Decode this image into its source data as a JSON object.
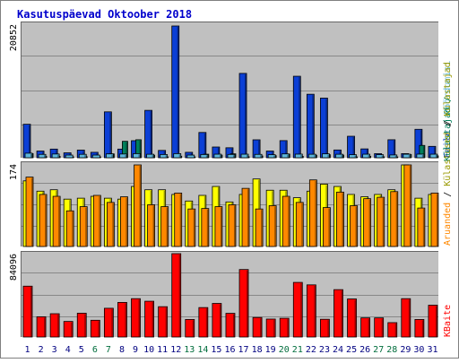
{
  "chart_data": [
    {
      "type": "bar",
      "title": "Kasutuspäevad Oktoober 2018",
      "panel": "top",
      "ylabel_parts": [
        "Külastajad",
        "Faile",
        "Pöördumisi"
      ],
      "max_label": "20852",
      "ylim": [
        0,
        20852
      ],
      "series": [
        {
          "name": "Külastajad",
          "color": "#00805c",
          "values": [
            650,
            195,
            215,
            125,
            165,
            125,
            610,
            2600,
            2850,
            410,
            135,
            250,
            120,
            560,
            410,
            620,
            160,
            280,
            325,
            580,
            220,
            395,
            480,
            420,
            115,
            240,
            155,
            125,
            520,
            1950,
            300
          ]
        },
        {
          "name": "Faile",
          "color": "#0b3fd6",
          "values": [
            5300,
            1060,
            1370,
            780,
            1210,
            860,
            7260,
            1370,
            2700,
            7500,
            1160,
            20852,
            860,
            4000,
            1700,
            1580,
            13350,
            2840,
            1060,
            2710,
            12900,
            10050,
            9440,
            1230,
            3400,
            1400,
            650,
            2850,
            650,
            4500,
            1800
          ]
        },
        {
          "name": "Pöördumisi",
          "color": "#5eb7dd",
          "values": [
            720,
            530,
            590,
            420,
            540,
            420,
            610,
            590,
            650,
            550,
            510,
            650,
            420,
            510,
            560,
            520,
            560,
            530,
            480,
            610,
            570,
            550,
            620,
            550,
            480,
            560,
            480,
            440,
            560,
            570,
            560
          ]
        }
      ]
    },
    {
      "type": "bar",
      "panel": "middle",
      "ylabel_parts": [
        "Aruanded",
        "Külastused",
        "Külastajad"
      ],
      "max_label": "174",
      "ylim": [
        0,
        174
      ],
      "series": [
        {
          "name": "Külastused",
          "color": "#ffff00",
          "values": [
            140,
            118,
            121,
            101,
            103,
            107,
            103,
            101,
            128,
            121,
            121,
            111,
            97,
            109,
            128,
            95,
            111,
            144,
            120,
            120,
            104,
            118,
            133,
            128,
            111,
            106,
            111,
            121,
            174,
            103,
            111
          ]
        },
        {
          "name": "Aruanded",
          "color": "#ff8800",
          "values": [
            148,
            111,
            107,
            76,
            85,
            109,
            94,
            106,
            174,
            89,
            85,
            114,
            80,
            81,
            85,
            89,
            124,
            80,
            87,
            107,
            94,
            142,
            83,
            116,
            87,
            102,
            105,
            117,
            174,
            82,
            114
          ]
        }
      ]
    },
    {
      "type": "bar",
      "panel": "bottom",
      "ylabel": "KBaite",
      "max_label": "84096",
      "ylim": [
        0,
        84096
      ],
      "categories": [
        "1",
        "2",
        "3",
        "4",
        "5",
        "6",
        "7",
        "8",
        "9",
        "10",
        "11",
        "12",
        "13",
        "14",
        "15",
        "16",
        "17",
        "18",
        "19",
        "20",
        "21",
        "22",
        "23",
        "24",
        "25",
        "26",
        "27",
        "28",
        "29",
        "30",
        "31"
      ],
      "weekend_days": [
        "6",
        "7",
        "13",
        "14",
        "20",
        "21",
        "27",
        "28"
      ],
      "series": [
        {
          "name": "KBaite",
          "color": "#ff0000",
          "values": [
            51300,
            20400,
            23500,
            15700,
            24000,
            16900,
            29000,
            34900,
            38700,
            36100,
            30600,
            84096,
            17700,
            29700,
            33900,
            23900,
            68100,
            19700,
            18100,
            18900,
            55100,
            52600,
            17900,
            47800,
            38400,
            19300,
            19300,
            14500,
            38700,
            17700,
            32100
          ]
        }
      ]
    }
  ],
  "colors": {
    "frame": "#808080",
    "plot_bg": "#c0c0c0",
    "outer_bg": "#ffffff",
    "title": "#0000cc",
    "grid": "#888888",
    "weekday_label": "#000080",
    "weekend_label": "#006d3c"
  }
}
